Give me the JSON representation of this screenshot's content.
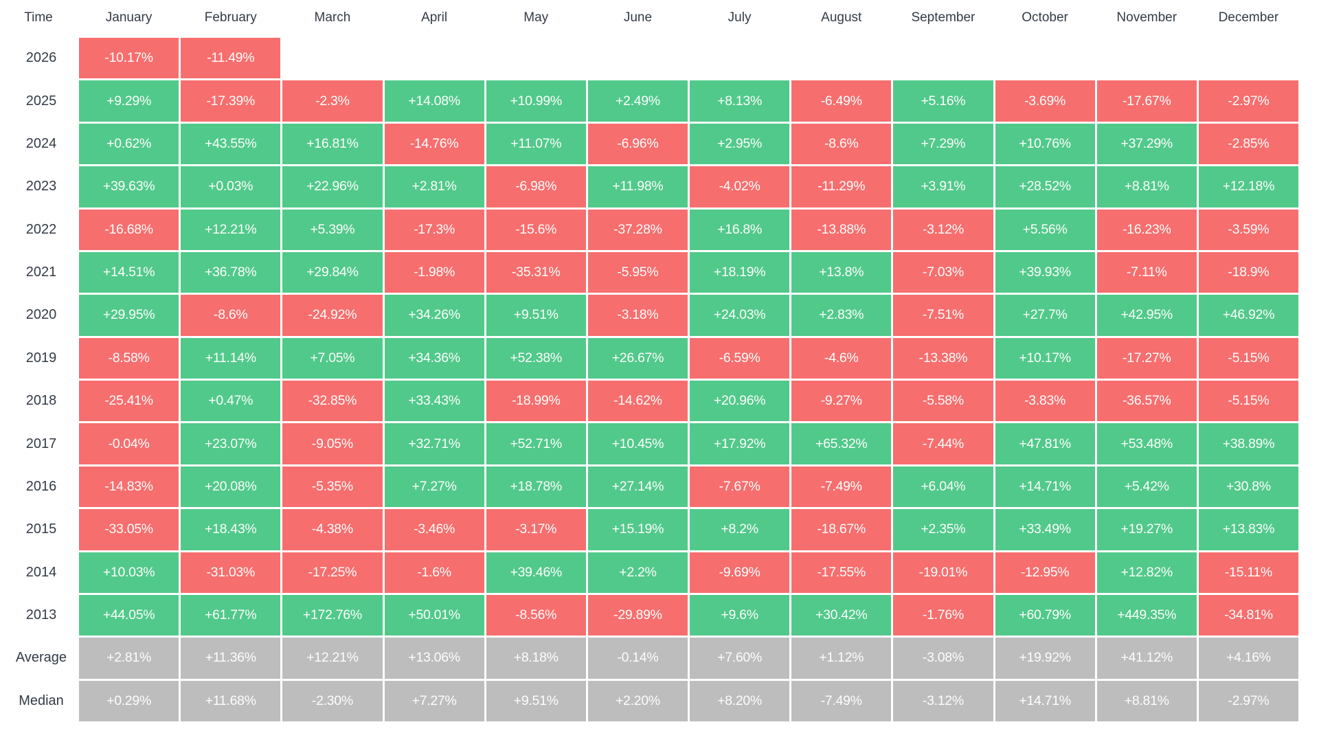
{
  "colors": {
    "positive": "#51C98A",
    "negative": "#F76E6E",
    "neutral": "#BDBDBD",
    "label_text": "#333B46",
    "cell_text": "#FDFDFD",
    "background": "#FFFFFF"
  },
  "chart_data": {
    "type": "heatmap",
    "corner_label": "Time",
    "columns": [
      "January",
      "February",
      "March",
      "April",
      "May",
      "June",
      "July",
      "August",
      "September",
      "October",
      "November",
      "December"
    ],
    "value_unit": "%",
    "color_rule": "positive values green, negative values red, summary rows gray, missing months blank",
    "rows": [
      {
        "label": "2026",
        "kind": "year",
        "values": [
          "-10.17%",
          "-11.49%",
          "",
          "",
          "",
          "",
          "",
          "",
          "",
          "",
          "",
          ""
        ]
      },
      {
        "label": "2025",
        "kind": "year",
        "values": [
          "+9.29%",
          "-17.39%",
          "-2.3%",
          "+14.08%",
          "+10.99%",
          "+2.49%",
          "+8.13%",
          "-6.49%",
          "+5.16%",
          "-3.69%",
          "-17.67%",
          "-2.97%"
        ]
      },
      {
        "label": "2024",
        "kind": "year",
        "values": [
          "+0.62%",
          "+43.55%",
          "+16.81%",
          "-14.76%",
          "+11.07%",
          "-6.96%",
          "+2.95%",
          "-8.6%",
          "+7.29%",
          "+10.76%",
          "+37.29%",
          "-2.85%"
        ]
      },
      {
        "label": "2023",
        "kind": "year",
        "values": [
          "+39.63%",
          "+0.03%",
          "+22.96%",
          "+2.81%",
          "-6.98%",
          "+11.98%",
          "-4.02%",
          "-11.29%",
          "+3.91%",
          "+28.52%",
          "+8.81%",
          "+12.18%"
        ]
      },
      {
        "label": "2022",
        "kind": "year",
        "values": [
          "-16.68%",
          "+12.21%",
          "+5.39%",
          "-17.3%",
          "-15.6%",
          "-37.28%",
          "+16.8%",
          "-13.88%",
          "-3.12%",
          "+5.56%",
          "-16.23%",
          "-3.59%"
        ]
      },
      {
        "label": "2021",
        "kind": "year",
        "values": [
          "+14.51%",
          "+36.78%",
          "+29.84%",
          "-1.98%",
          "-35.31%",
          "-5.95%",
          "+18.19%",
          "+13.8%",
          "-7.03%",
          "+39.93%",
          "-7.11%",
          "-18.9%"
        ]
      },
      {
        "label": "2020",
        "kind": "year",
        "values": [
          "+29.95%",
          "-8.6%",
          "-24.92%",
          "+34.26%",
          "+9.51%",
          "-3.18%",
          "+24.03%",
          "+2.83%",
          "-7.51%",
          "+27.7%",
          "+42.95%",
          "+46.92%"
        ]
      },
      {
        "label": "2019",
        "kind": "year",
        "values": [
          "-8.58%",
          "+11.14%",
          "+7.05%",
          "+34.36%",
          "+52.38%",
          "+26.67%",
          "-6.59%",
          "-4.6%",
          "-13.38%",
          "+10.17%",
          "-17.27%",
          "-5.15%"
        ]
      },
      {
        "label": "2018",
        "kind": "year",
        "values": [
          "-25.41%",
          "+0.47%",
          "-32.85%",
          "+33.43%",
          "-18.99%",
          "-14.62%",
          "+20.96%",
          "-9.27%",
          "-5.58%",
          "-3.83%",
          "-36.57%",
          "-5.15%"
        ]
      },
      {
        "label": "2017",
        "kind": "year",
        "values": [
          "-0.04%",
          "+23.07%",
          "-9.05%",
          "+32.71%",
          "+52.71%",
          "+10.45%",
          "+17.92%",
          "+65.32%",
          "-7.44%",
          "+47.81%",
          "+53.48%",
          "+38.89%"
        ]
      },
      {
        "label": "2016",
        "kind": "year",
        "values": [
          "-14.83%",
          "+20.08%",
          "-5.35%",
          "+7.27%",
          "+18.78%",
          "+27.14%",
          "-7.67%",
          "-7.49%",
          "+6.04%",
          "+14.71%",
          "+5.42%",
          "+30.8%"
        ]
      },
      {
        "label": "2015",
        "kind": "year",
        "values": [
          "-33.05%",
          "+18.43%",
          "-4.38%",
          "-3.46%",
          "-3.17%",
          "+15.19%",
          "+8.2%",
          "-18.67%",
          "+2.35%",
          "+33.49%",
          "+19.27%",
          "+13.83%"
        ]
      },
      {
        "label": "2014",
        "kind": "year",
        "values": [
          "+10.03%",
          "-31.03%",
          "-17.25%",
          "-1.6%",
          "+39.46%",
          "+2.2%",
          "-9.69%",
          "-17.55%",
          "-19.01%",
          "-12.95%",
          "+12.82%",
          "-15.11%"
        ]
      },
      {
        "label": "2013",
        "kind": "year",
        "values": [
          "+44.05%",
          "+61.77%",
          "+172.76%",
          "+50.01%",
          "-8.56%",
          "-29.89%",
          "+9.6%",
          "+30.42%",
          "-1.76%",
          "+60.79%",
          "+449.35%",
          "-34.81%"
        ]
      },
      {
        "label": "Average",
        "kind": "summary",
        "values": [
          "+2.81%",
          "+11.36%",
          "+12.21%",
          "+13.06%",
          "+8.18%",
          "-0.14%",
          "+7.60%",
          "+1.12%",
          "-3.08%",
          "+19.92%",
          "+41.12%",
          "+4.16%"
        ]
      },
      {
        "label": "Median",
        "kind": "summary",
        "values": [
          "+0.29%",
          "+11.68%",
          "-2.30%",
          "+7.27%",
          "+9.51%",
          "+2.20%",
          "+8.20%",
          "-7.49%",
          "-3.12%",
          "+14.71%",
          "+8.81%",
          "-2.97%"
        ]
      }
    ]
  }
}
